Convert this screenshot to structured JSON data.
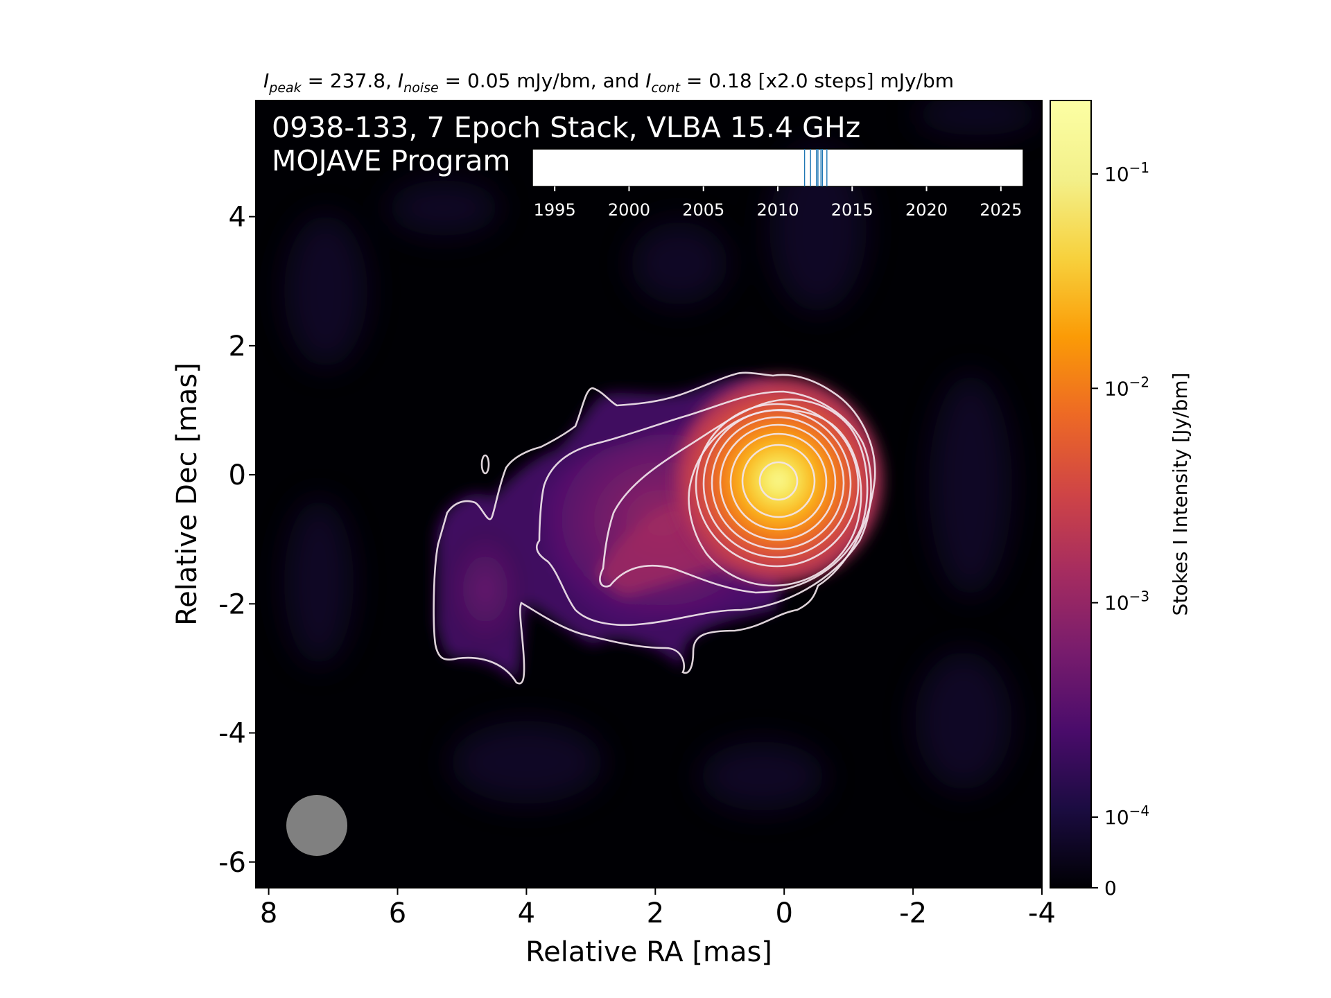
{
  "chart_data": {
    "type": "heatmap",
    "header": {
      "peak_sym": "I",
      "peak_sub": "peak",
      "peak_val": " = 237.8, ",
      "noise_sym": "I",
      "noise_sub": "noise",
      "noise_val": " = 0.05 mJy/bm, and ",
      "cont_sym": "I",
      "cont_sub": "cont",
      "cont_val": " = 0.18 [x2.0 steps] mJy/bm"
    },
    "title_line1": "0938-133, 7 Epoch Stack, VLBA 15.4 GHz",
    "title_line2": "MOJAVE Program",
    "xlabel": "Relative RA [mas]",
    "ylabel": "Relative Dec [mas]",
    "xlim": [
      8.2,
      -4.0
    ],
    "ylim": [
      -6.4,
      5.8
    ],
    "xticks": [
      8,
      6,
      4,
      2,
      0,
      -2,
      -4
    ],
    "xtick_labels": [
      "8",
      "6",
      "4",
      "2",
      "0",
      "-2",
      "-4"
    ],
    "yticks": [
      4,
      2,
      0,
      -2,
      -4,
      -6
    ],
    "ytick_labels": [
      "4",
      "2",
      "0",
      "-2",
      "-4",
      "-6"
    ],
    "colormap": "inferno",
    "colorbar": {
      "label": "Stokes I Intensity [Jy/bm]",
      "scale": "log",
      "ticks": [
        {
          "value": 0.1,
          "base": "10",
          "exp": "−1"
        },
        {
          "value": 0.01,
          "base": "10",
          "exp": "−2"
        },
        {
          "value": 0.001,
          "base": "10",
          "exp": "−3"
        },
        {
          "value": 0.0001,
          "base": "10",
          "exp": "−4"
        },
        {
          "value": 0,
          "base": "0",
          "exp": ""
        }
      ],
      "min": 0,
      "max": 0.2378
    },
    "peak_position": [
      0.0,
      -0.1
    ],
    "peak_jy_per_beam": 0.2378,
    "contour_base_mjy": 0.18,
    "contour_step": 2.0,
    "contour_count": 11,
    "beam": {
      "color": "#808080",
      "center": [
        7.2,
        -5.4
      ],
      "major_mas": 0.95,
      "minor_mas": 0.95
    },
    "epoch_timeline": {
      "xlim": [
        1993.5,
        2026.5
      ],
      "ticks": [
        1995,
        2000,
        2005,
        2010,
        2015,
        2020,
        2025
      ],
      "tick_labels": [
        "1995",
        "2000",
        "2005",
        "2010",
        "2015",
        "2020",
        "2025"
      ],
      "epochs": [
        2011.8,
        2012.2,
        2012.6,
        2012.7,
        2012.9,
        2013.0,
        2013.3
      ],
      "line_color": "#1f77b4"
    }
  }
}
